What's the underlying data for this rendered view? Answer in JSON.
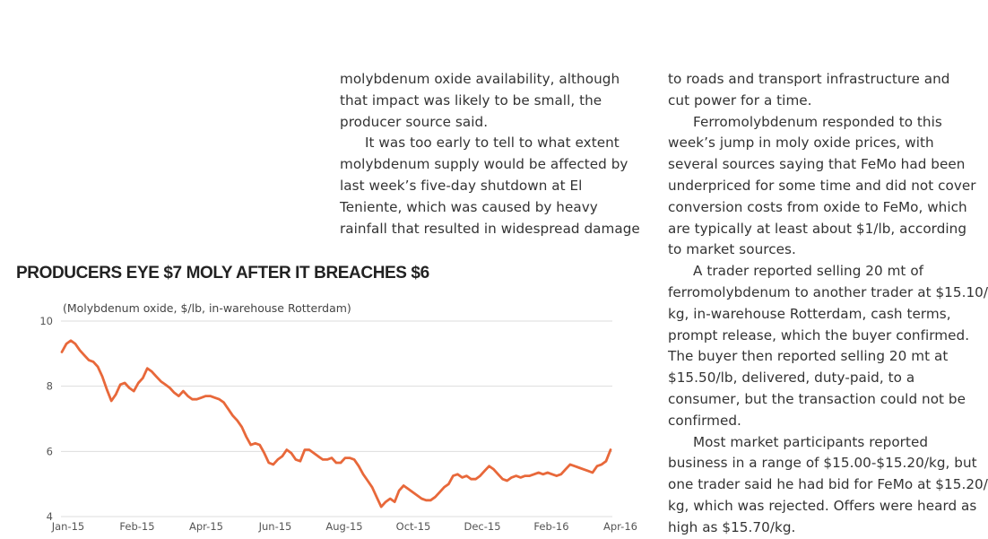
{
  "article": {
    "middle_column": [
      {
        "indent": false,
        "text": "molybdenum oxide availability, although that impact was likely to be small, the producer source said."
      },
      {
        "indent": true,
        "text": "It was too early to tell to what extent molybdenum supply would be affected by last week’s five-day shutdown at El Teniente, which was caused by heavy rainfall that resulted in widespread damage"
      }
    ],
    "right_column_lines": [
      {
        "indent": false,
        "text": "to roads and transport infrastructure and"
      },
      {
        "indent": false,
        "text": "cut power for a time."
      },
      {
        "indent": true,
        "text": "Ferromolybdenum responded to this"
      },
      {
        "indent": false,
        "text": "week’s jump in moly oxide prices, with"
      },
      {
        "indent": false,
        "text": "several sources saying that FeMo had been"
      },
      {
        "indent": false,
        "text": "underpriced for some time and did not cover"
      },
      {
        "indent": false,
        "text": "conversion costs from oxide to FeMo, which"
      },
      {
        "indent": false,
        "text": "are typically at least about $1/lb, according"
      },
      {
        "indent": false,
        "text": "to market sources."
      },
      {
        "indent": true,
        "text": "A trader reported selling 20 mt of"
      },
      {
        "indent": false,
        "text": "ferromolybdenum to another trader at $15.10/"
      },
      {
        "indent": false,
        "text": "kg, in-warehouse Rotterdam, cash terms,"
      },
      {
        "indent": false,
        "text": "prompt release, which the buyer confirmed."
      },
      {
        "indent": false,
        "text": "The buyer then reported selling 20 mt at"
      },
      {
        "indent": false,
        "text": "$15.50/lb, delivered, duty-paid, to a"
      },
      {
        "indent": false,
        "text": "consumer, but the transaction could not be"
      },
      {
        "indent": false,
        "text": "confirmed."
      },
      {
        "indent": true,
        "text": "Most market participants reported"
      },
      {
        "indent": false,
        "text": "business in a range of $15.00-$15.20/kg, but"
      },
      {
        "indent": false,
        "text": "one trader said he had bid for FeMo at $15.20/"
      },
      {
        "indent": false,
        "text": "kg, which was rejected. Offers were heard as"
      },
      {
        "indent": false,
        "text": "high as $15.70/kg."
      }
    ]
  },
  "chart_data": {
    "type": "line",
    "title": "PRODUCERS EYE $7 MOLY AFTER IT BREACHES $6",
    "subtitle": "(Molybdenum oxide, $/lb, in-warehouse Rotterdam)",
    "xlabel": "",
    "ylabel": "",
    "ylim": [
      4,
      10
    ],
    "y_ticks": [
      4,
      6,
      8,
      10
    ],
    "x_ticks": [
      "Jan-15",
      "Feb-15",
      "Apr-15",
      "Jun-15",
      "Aug-15",
      "Oct-15",
      "Dec-15",
      "Feb-16",
      "Apr-16"
    ],
    "grid": true,
    "line_color": "#e8683a",
    "series": [
      {
        "values": [
          9.05,
          9.3,
          9.4,
          9.3,
          9.1,
          8.95,
          8.8,
          8.75,
          8.6,
          8.3,
          7.9,
          7.55,
          7.75,
          8.05,
          8.1,
          7.95,
          7.85,
          8.1,
          8.25,
          8.55,
          8.45,
          8.3,
          8.15,
          8.05,
          7.95,
          7.8,
          7.7,
          7.85,
          7.7,
          7.6,
          7.6,
          7.65,
          7.7,
          7.7,
          7.65,
          7.6,
          7.5,
          7.3,
          7.1,
          6.95,
          6.75,
          6.45,
          6.2,
          6.25,
          6.2,
          5.95,
          5.65,
          5.6,
          5.75,
          5.85,
          6.05,
          5.95,
          5.75,
          5.7,
          6.05,
          6.05,
          5.95,
          5.85,
          5.75,
          5.75,
          5.8,
          5.65,
          5.65,
          5.8,
          5.8,
          5.75,
          5.55,
          5.3,
          5.1,
          4.9,
          4.6,
          4.3,
          4.45,
          4.55,
          4.45,
          4.8,
          4.95,
          4.85,
          4.75,
          4.65,
          4.55,
          4.5,
          4.5,
          4.6,
          4.75,
          4.9,
          5.0,
          5.25,
          5.3,
          5.2,
          5.25,
          5.15,
          5.15,
          5.25,
          5.4,
          5.55,
          5.45,
          5.3,
          5.15,
          5.1,
          5.2,
          5.25,
          5.2,
          5.25,
          5.25,
          5.3,
          5.35,
          5.3,
          5.35,
          5.3,
          5.25,
          5.3,
          5.45,
          5.6,
          5.55,
          5.5,
          5.45,
          5.4,
          5.35,
          5.55,
          5.6,
          5.7,
          6.05
        ]
      }
    ]
  }
}
